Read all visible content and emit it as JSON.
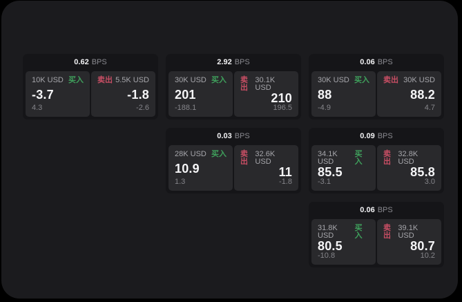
{
  "labels": {
    "unit": "BPS",
    "buy_side": "买入",
    "sell_side": "卖出"
  },
  "colors": {
    "background": "#000000",
    "panel": "#1b1b1e",
    "card": "#151518",
    "tile": "#29292c",
    "buy_accent": "#3fa05c",
    "sell_accent": "#c74e64",
    "text_primary": "#f5f5f7",
    "text_secondary": "#a6a6ab",
    "text_muted": "#85858a"
  },
  "cards": [
    {
      "spread": "0.62",
      "buy": {
        "size": "10K USD",
        "side": "买入",
        "price": "-3.7",
        "delta": "4.3"
      },
      "sell": {
        "side": "卖出",
        "size": "5.5K USD",
        "price": "-1.8",
        "delta": "-2.6"
      }
    },
    {
      "spread": "2.92",
      "buy": {
        "size": "30K USD",
        "side": "买入",
        "price": "201",
        "delta": "-188.1"
      },
      "sell": {
        "side": "卖出",
        "size": "30.1K USD",
        "price": "210",
        "delta": "196.5"
      }
    },
    {
      "spread": "0.06",
      "buy": {
        "size": "30K USD",
        "side": "买入",
        "price": "88",
        "delta": "-4.9"
      },
      "sell": {
        "side": "卖出",
        "size": "30K USD",
        "price": "88.2",
        "delta": "4.7"
      }
    },
    {
      "spread": "0.03",
      "buy": {
        "size": "28K USD",
        "side": "买入",
        "price": "10.9",
        "delta": "1.3"
      },
      "sell": {
        "side": "卖出",
        "size": "32.6K USD",
        "price": "11",
        "delta": "-1.8"
      }
    },
    {
      "spread": "0.09",
      "buy": {
        "size": "34.1K USD",
        "side": "买入",
        "price": "85.5",
        "delta": "-3.1"
      },
      "sell": {
        "side": "卖出",
        "size": "32.8K USD",
        "price": "85.8",
        "delta": "3.0"
      }
    },
    {
      "spread": "0.06",
      "buy": {
        "size": "31.8K USD",
        "side": "买入",
        "price": "80.5",
        "delta": "-10.8"
      },
      "sell": {
        "side": "卖出",
        "size": "39.1K USD",
        "price": "80.7",
        "delta": "10.2"
      }
    }
  ]
}
